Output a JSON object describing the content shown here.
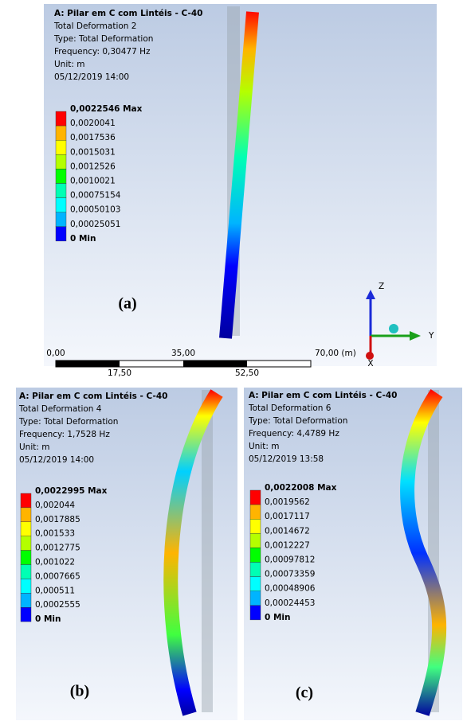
{
  "panels": [
    {
      "label": "(a)",
      "title": "A: Pilar em C com Lintéis - C-40",
      "info": [
        "Total Deformation 2",
        "Type: Total Deformation",
        "Frequency: 0,30477 Hz",
        "Unit: m",
        "05/12/2019 14:00"
      ],
      "legend": [
        "0,0022546 Max",
        "0,0020041",
        "0,0017536",
        "0,0015031",
        "0,0012526",
        "0,0010021",
        "0,00075154",
        "0,00050103",
        "0,00025051",
        "0 Min"
      ]
    },
    {
      "label": "(b)",
      "title": "A: Pilar em C com Lintéis - C-40",
      "info": [
        "Total Deformation 4",
        "Type: Total Deformation",
        "Frequency: 1,7528 Hz",
        "Unit: m",
        "05/12/2019 14:00"
      ],
      "legend": [
        "0,0022995 Max",
        "0,002044",
        "0,0017885",
        "0,001533",
        "0,0012775",
        "0,001022",
        "0,0007665",
        "0,000511",
        "0,0002555",
        "0 Min"
      ]
    },
    {
      "label": "(c)",
      "title": "A: Pilar em C com Lintéis - C-40",
      "info": [
        "Total Deformation 6",
        "Type: Total Deformation",
        "Frequency: 4,4789 Hz",
        "Unit: m",
        "05/12/2019 13:58"
      ],
      "legend": [
        "0,0022008 Max",
        "0,0019562",
        "0,0017117",
        "0,0014672",
        "0,0012227",
        "0,00097812",
        "0,00073359",
        "0,00048906",
        "0,00024453",
        "0 Min"
      ]
    }
  ],
  "scale_bar": {
    "top": [
      "0,00",
      "35,00",
      "70,00 (m)"
    ],
    "bottom": [
      "17,50",
      "52,50"
    ]
  },
  "triad": {
    "z": "Z",
    "y": "Y",
    "x": "X"
  }
}
